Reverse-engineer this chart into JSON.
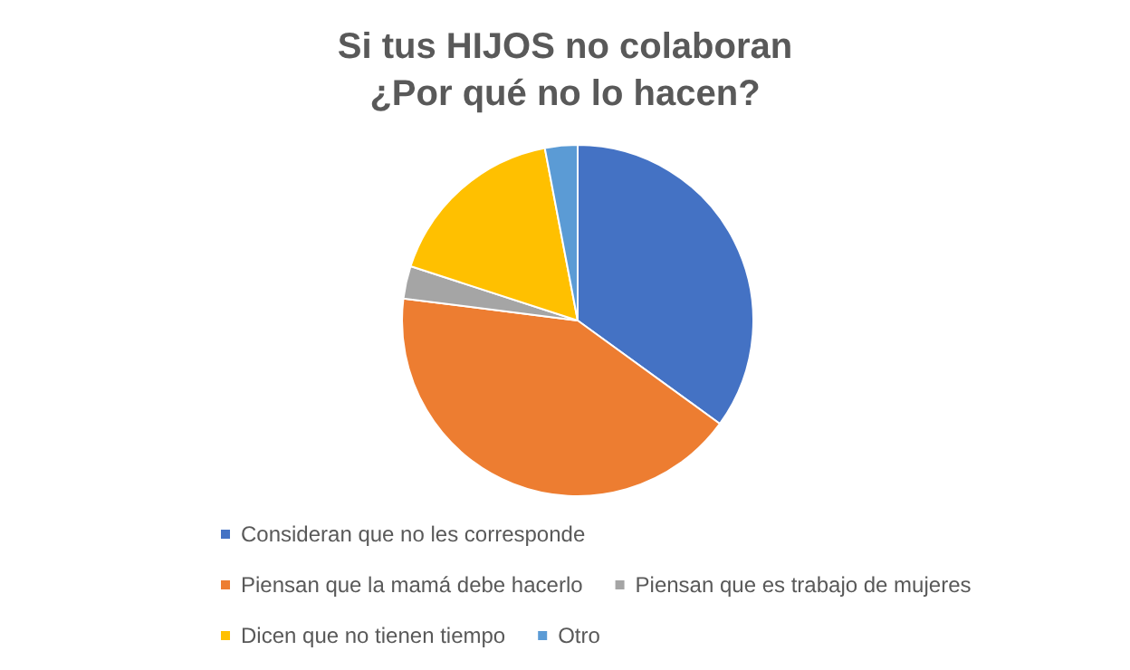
{
  "chart_data": {
    "type": "pie",
    "title": "Si tus HIJOS no colaboran\n¿Por qué no lo hacen?",
    "categories": [
      "Consideran que no les corresponde",
      "Piensan que la mamá debe hacerlo",
      "Piensan que es trabajo de mujeres",
      "Dicen que no tienen tiempo",
      "Otro"
    ],
    "values": [
      35,
      42,
      3,
      17,
      3
    ],
    "colors": [
      "#4472c4",
      "#ed7d31",
      "#a5a5a5",
      "#ffc000",
      "#5b9bd5"
    ],
    "legend": "bottom"
  }
}
